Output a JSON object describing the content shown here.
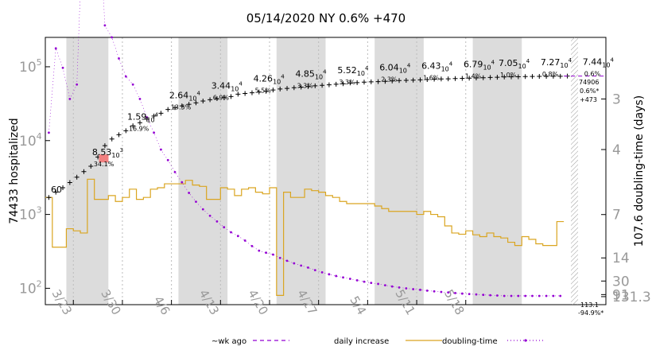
{
  "chart_data": {
    "type": "line",
    "title": "05/14/2020 NY 0.6% +470",
    "ylabel": "74433 hospitalized",
    "y2label": "107.6 doubling-time (days)",
    "yscale": "log",
    "ylim": [
      60,
      250000
    ],
    "y_ticks": [
      {
        "label": "10",
        "exp": "2",
        "value": 100
      },
      {
        "label": "10",
        "exp": "3",
        "value": 1000
      },
      {
        "label": "10",
        "exp": "4",
        "value": 10000
      },
      {
        "label": "10",
        "exp": "5",
        "value": 100000
      }
    ],
    "y2_ticks": [
      "3",
      "4",
      "7",
      "14",
      "30",
      "91",
      "131.3"
    ],
    "x_ticks": [
      "3/23",
      "3/30",
      "4/6",
      "4/13",
      "4/20",
      "4/27",
      "5/4",
      "5/11",
      "5/18"
    ],
    "shaded_weeks": [
      [
        3,
        9
      ],
      [
        19,
        26
      ],
      [
        33,
        40
      ],
      [
        47,
        54
      ],
      [
        61,
        68
      ]
    ],
    "annotations": [
      {
        "value": "60",
        "exp": "",
        "pct": ""
      },
      {
        "value": "8.53",
        "exp": "3",
        "pct": "34.1%"
      },
      {
        "value": "1.59",
        "exp": "4",
        "pct": "16.9%"
      },
      {
        "value": "2.64",
        "exp": "4",
        "pct": "13.5%"
      },
      {
        "value": "3.44",
        "exp": "4",
        "pct": "6.9%"
      },
      {
        "value": "4.26",
        "exp": "4",
        "pct": "5.5%"
      },
      {
        "value": "4.85",
        "exp": "4",
        "pct": "3.3%"
      },
      {
        "value": "5.52",
        "exp": "4",
        "pct": "3.3%"
      },
      {
        "value": "6.04",
        "exp": "4",
        "pct": "2.3%"
      },
      {
        "value": "6.43",
        "exp": "4",
        "pct": "1.6%"
      },
      {
        "value": "6.79",
        "exp": "4",
        "pct": "1.4%"
      },
      {
        "value": "7.05",
        "exp": "4",
        "pct": "1.0%"
      },
      {
        "value": "7.27",
        "exp": "4",
        "pct": "0.8%"
      },
      {
        "value": "7.44",
        "exp": "4",
        "pct": "0.6%"
      }
    ],
    "end_labels": {
      "total": "74906",
      "pct": "0.6%*",
      "increase": "+473",
      "doubling": "113.1",
      "doubling_pct": "-94.9%*"
    },
    "legend": [
      {
        "label": "~wk ago",
        "color": "#9400d3"
      },
      {
        "label": "daily increase",
        "color": "#daa520"
      },
      {
        "label": "doubling-time",
        "color": "#9400d3"
      }
    ],
    "series": [
      {
        "name": "hospitalized",
        "x": [
          0,
          1,
          2,
          3,
          4,
          5,
          6,
          7,
          8,
          9,
          10,
          11,
          12,
          13,
          14,
          15,
          16,
          17,
          18,
          19,
          20,
          21,
          22,
          23,
          24,
          25,
          26,
          27,
          28,
          29,
          30,
          31,
          32,
          33,
          34,
          35,
          36,
          37,
          38,
          39,
          40,
          41,
          42,
          43,
          44,
          45,
          46,
          47,
          48,
          49,
          50,
          51,
          52,
          53,
          54,
          55,
          56,
          57,
          58,
          59,
          60,
          61,
          62,
          63,
          64,
          65,
          66,
          67,
          68,
          69,
          70,
          71,
          72,
          73,
          74,
          75,
          76,
          77,
          78,
          79
        ],
        "values": [
          1700,
          2000,
          2300,
          2700,
          3200,
          3800,
          4500,
          6000,
          8530,
          10500,
          12000,
          13600,
          15900,
          17500,
          19500,
          21500,
          23500,
          26400,
          28000,
          29500,
          31000,
          32500,
          34400,
          35800,
          37000,
          38200,
          39500,
          42600,
          43500,
          44500,
          45500,
          46500,
          48500,
          50000,
          51000,
          52000,
          53000,
          54000,
          55200,
          56000,
          57000,
          58000,
          59000,
          60400,
          61000,
          62000,
          62500,
          63000,
          63500,
          64300,
          65000,
          65500,
          66000,
          66500,
          67200,
          67900,
          68300,
          68700,
          69200,
          69600,
          70200,
          70500,
          71000,
          71600,
          72200,
          72700,
          73000,
          73200,
          73600,
          74000,
          74100,
          74200,
          74300,
          74433,
          74906,
          74906,
          74906,
          74906,
          74906,
          74906
        ]
      },
      {
        "name": "daily increase",
        "x": [
          0,
          1,
          2,
          3,
          4,
          5,
          6,
          7,
          8,
          9,
          10,
          11,
          12,
          13,
          14,
          15,
          16,
          17,
          18,
          19,
          20,
          21,
          22,
          23,
          24,
          25,
          26,
          27,
          28,
          29,
          30,
          31,
          32,
          33,
          34,
          35,
          36,
          37,
          38,
          39,
          40,
          41,
          42,
          43,
          44,
          45,
          46,
          47,
          48,
          49,
          50,
          51,
          52,
          53,
          54,
          55,
          56,
          57,
          58,
          59,
          60,
          61,
          62,
          63,
          64,
          65,
          66,
          67,
          68,
          69,
          70,
          71,
          72,
          73
        ],
        "values": [
          1700,
          360,
          360,
          640,
          600,
          560,
          3000,
          1600,
          1600,
          1800,
          1500,
          1700,
          2200,
          1600,
          1700,
          2200,
          2300,
          2600,
          2600,
          2600,
          2900,
          2500,
          2400,
          1600,
          1600,
          2300,
          2200,
          1800,
          2200,
          2300,
          2000,
          1900,
          2300,
          80,
          2000,
          1700,
          1700,
          2200,
          2100,
          2000,
          1800,
          1700,
          1500,
          1400,
          1400,
          1400,
          1400,
          1300,
          1200,
          1100,
          1100,
          1100,
          1100,
          1000,
          1100,
          1000,
          930,
          700,
          560,
          540,
          600,
          530,
          500,
          560,
          500,
          480,
          420,
          380,
          500,
          460,
          400,
          380,
          380,
          800
        ]
      },
      {
        "name": "doubling-time",
        "x": [
          0,
          1,
          2,
          3,
          4,
          5,
          6,
          7,
          8,
          9,
          10,
          11,
          12,
          13,
          14,
          15,
          16,
          17,
          18,
          19,
          20,
          21,
          22,
          23,
          24,
          25,
          26,
          27,
          28,
          29,
          30,
          31,
          32,
          33,
          34,
          35,
          36,
          37,
          38,
          39,
          40,
          41,
          42,
          43,
          44,
          45,
          46,
          47,
          48,
          49,
          50,
          51,
          52,
          53,
          54,
          55,
          56,
          57,
          58,
          59,
          60,
          61,
          62,
          63,
          64,
          65,
          66,
          67,
          68,
          69,
          70,
          71,
          72,
          73
        ],
        "values": [
          3.6,
          2.4,
          2.6,
          3.0,
          2.8,
          1.5,
          1.3,
          1.5,
          2.2,
          2.3,
          2.5,
          2.7,
          2.8,
          3.0,
          3.3,
          3.6,
          4.0,
          4.3,
          4.7,
          5.1,
          5.6,
          6.1,
          6.6,
          7.1,
          7.6,
          8.2,
          8.8,
          9.3,
          10,
          11,
          12,
          12.5,
          13,
          14,
          15,
          16,
          17,
          18,
          19.5,
          21,
          22.5,
          24,
          25.5,
          27,
          29,
          31,
          33,
          35,
          38,
          41,
          44,
          47,
          50,
          53,
          57,
          61,
          65,
          69,
          74,
          79,
          84,
          89,
          95,
          100,
          106,
          113,
          113,
          113,
          113,
          113,
          113,
          113,
          113,
          113.1
        ]
      }
    ]
  }
}
